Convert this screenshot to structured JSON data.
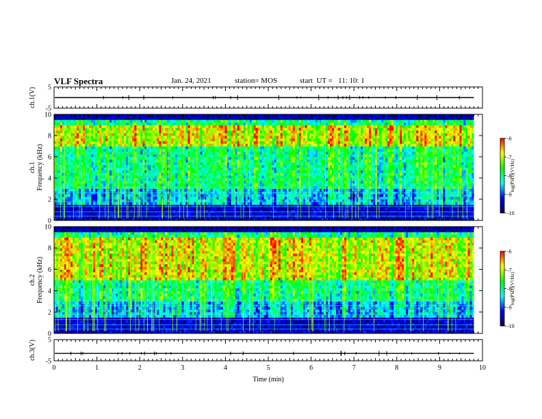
{
  "header": {
    "title": "VLF Spectra",
    "date": "Jan. 24, 2021",
    "station": "station= MOS",
    "start_ut": "start  UT =   11: 10: 1"
  },
  "chart_data": [
    {
      "type": "line",
      "name": "ch1-waveform",
      "ylabel": "ch.1(V)",
      "ylim": [
        -5,
        5
      ],
      "y_ticks": [
        "5",
        "-5"
      ],
      "series_level": 0
    },
    {
      "type": "heatmap",
      "name": "ch1-spectrogram",
      "ylabel": "ch.1\nFrequency (kHz)",
      "ylim": [
        0,
        10
      ],
      "y_ticks": [
        "0",
        "2",
        "4",
        "6",
        "8",
        "10"
      ],
      "intense_band_khz": [
        7,
        9
      ],
      "colorbar": {
        "label": "log(PSD)(V²/Hz)",
        "range": [
          -10,
          -6
        ],
        "ticks": [
          "-6",
          "-7",
          "-8",
          "-9",
          "-10"
        ]
      }
    },
    {
      "type": "heatmap",
      "name": "ch2-spectrogram",
      "ylabel": "ch.2\nFrequency (kHz)",
      "ylim": [
        0,
        10
      ],
      "y_ticks": [
        "0",
        "2",
        "4",
        "6",
        "8",
        "10"
      ],
      "intense_band_khz": [
        5,
        9
      ],
      "colorbar": {
        "label": "log(PSD)(V²/Hz)",
        "range": [
          -10,
          -6
        ],
        "ticks": [
          "-6",
          "-7",
          "-8",
          "-9",
          "-10"
        ]
      }
    },
    {
      "type": "line",
      "name": "ch3-waveform",
      "ylabel": "ch.3(V)",
      "ylim": [
        -5,
        5
      ],
      "y_ticks": [
        "5",
        "-5"
      ],
      "series_level": -1.5
    }
  ],
  "x_axis": {
    "label": "Time (min)",
    "ticks": [
      "0",
      "1",
      "2",
      "3",
      "4",
      "5",
      "6",
      "7",
      "8",
      "9",
      "10"
    ],
    "xlim": [
      0,
      10
    ],
    "data_end_min": 9.8
  },
  "colormap": [
    "#000040",
    "#0000ff",
    "#00ffff",
    "#00ff00",
    "#ffff00",
    "#ff0000",
    "#ffffff"
  ]
}
